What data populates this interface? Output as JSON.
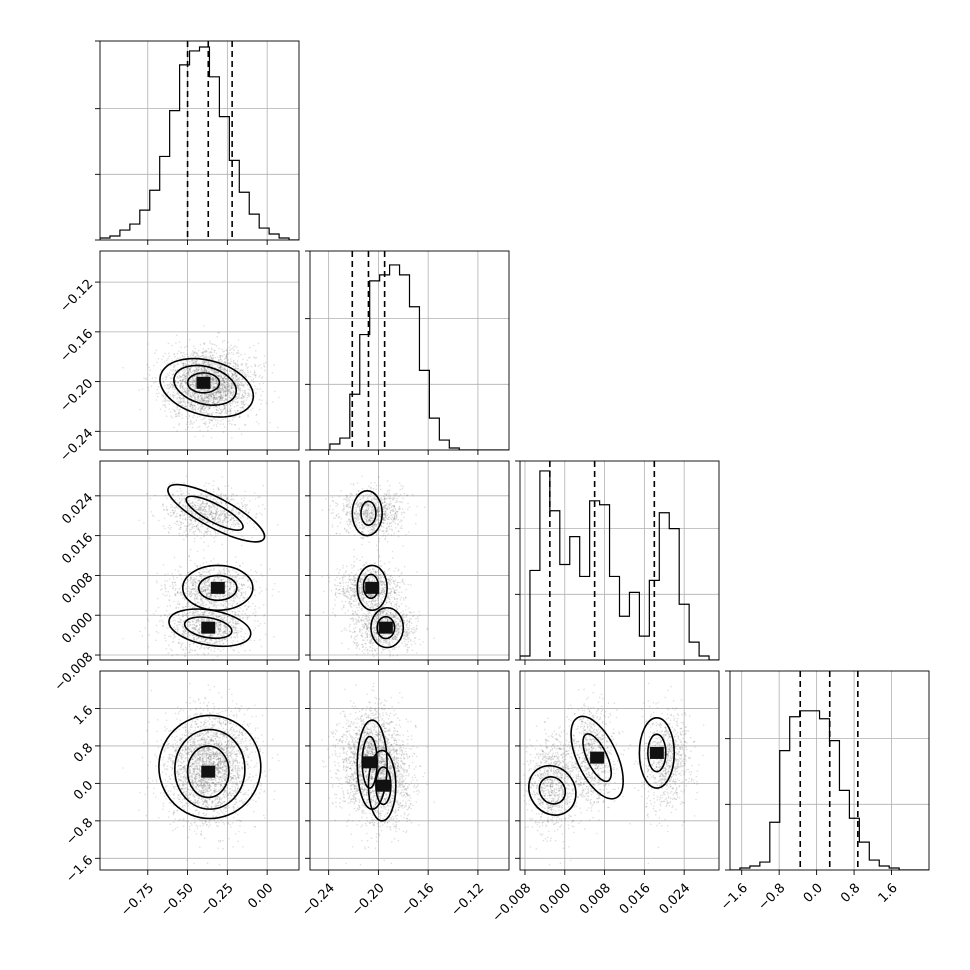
{
  "chart_data": {
    "type": "corner",
    "parameters": [
      {
        "key": "p0",
        "range": [
          -1.05,
          0.2
        ],
        "ticks": [
          -0.75,
          -0.5,
          -0.25,
          0.0
        ],
        "tick_labels": [
          "−0.75",
          "−0.50",
          "−0.25",
          "0.00"
        ],
        "quantiles": [
          -0.5,
          -0.37,
          -0.22
        ],
        "hist": [
          0.01,
          0.02,
          0.05,
          0.08,
          0.15,
          0.25,
          0.42,
          0.65,
          0.88,
          0.95,
          0.97,
          0.82,
          0.62,
          0.4,
          0.24,
          0.13,
          0.06,
          0.03,
          0.01,
          0.0
        ]
      },
      {
        "key": "p1",
        "range": [
          -0.255,
          -0.095
        ],
        "ticks": [
          -0.24,
          -0.2,
          -0.16,
          -0.12
        ],
        "tick_labels": [
          "−0.24",
          "−0.20",
          "−0.16",
          "−0.12"
        ],
        "quantiles": [
          -0.221,
          -0.208,
          -0.195
        ],
        "hist": [
          0.0,
          0.0,
          0.03,
          0.06,
          0.28,
          0.58,
          0.85,
          0.88,
          0.93,
          0.88,
          0.72,
          0.4,
          0.16,
          0.05,
          0.01,
          0.0,
          0.0,
          0.0,
          0.0,
          0.0
        ]
      },
      {
        "key": "p2",
        "range": [
          -0.009,
          0.031
        ],
        "ticks": [
          -0.008,
          0.0,
          0.008,
          0.016,
          0.024
        ],
        "tick_labels": [
          "−0.008",
          "0.000",
          "0.008",
          "0.016",
          "0.024"
        ],
        "quantiles": [
          -0.003,
          0.006,
          0.018
        ],
        "hist": [
          0.02,
          0.45,
          0.95,
          0.75,
          0.48,
          0.62,
          0.42,
          0.8,
          0.78,
          0.42,
          0.22,
          0.34,
          0.12,
          0.4,
          0.74,
          0.66,
          0.28,
          0.09,
          0.02,
          0.0
        ]
      },
      {
        "key": "p3",
        "range": [
          -1.85,
          2.4
        ],
        "ticks": [
          -1.6,
          -0.8,
          0.0,
          0.8,
          1.6
        ],
        "tick_labels": [
          "−1.6",
          "−0.8",
          "0.0",
          "0.8",
          "1.6"
        ],
        "quantiles": [
          -0.35,
          0.28,
          0.88
        ],
        "hist": [
          0.0,
          0.01,
          0.02,
          0.04,
          0.24,
          0.6,
          0.77,
          0.8,
          0.8,
          0.76,
          0.65,
          0.4,
          0.26,
          0.14,
          0.05,
          0.02,
          0.01,
          0.0,
          0.0,
          0.0
        ]
      }
    ],
    "modes": [
      {
        "m": [
          -0.38,
          -0.205,
          0.0205,
          0.5
        ],
        "w": 0.33
      },
      {
        "m": [
          -0.34,
          -0.208,
          0.0055,
          0.55
        ],
        "w": 0.33
      },
      {
        "m": [
          -0.38,
          -0.195,
          -0.0025,
          0.0
        ],
        "w": 0.34
      }
    ],
    "contours": {
      "1_0": [
        {
          "cx": -0.38,
          "cy": -0.205,
          "rx": 0.3,
          "ry": 0.022,
          "rot": 15
        },
        {
          "cx": -0.39,
          "cy": -0.203,
          "rx": 0.2,
          "ry": 0.015,
          "rot": 15
        },
        {
          "cx": -0.4,
          "cy": -0.201,
          "rx": 0.1,
          "ry": 0.008,
          "rot": 0
        }
      ],
      "2_0": [
        {
          "cx": -0.32,
          "cy": 0.0205,
          "rx": 0.34,
          "ry": 0.003,
          "rot": 28
        },
        {
          "cx": -0.33,
          "cy": 0.0205,
          "rx": 0.2,
          "ry": 0.0018,
          "rot": 28
        },
        {
          "cx": -0.31,
          "cy": 0.0055,
          "rx": 0.22,
          "ry": 0.0045,
          "rot": 0
        },
        {
          "cx": -0.31,
          "cy": 0.0055,
          "rx": 0.12,
          "ry": 0.0025,
          "rot": 0
        },
        {
          "cx": -0.36,
          "cy": -0.0025,
          "rx": 0.26,
          "ry": 0.0035,
          "rot": 10
        },
        {
          "cx": -0.37,
          "cy": -0.0025,
          "rx": 0.15,
          "ry": 0.002,
          "rot": 10
        }
      ],
      "2_1": [
        {
          "cx": -0.209,
          "cy": 0.0205,
          "rx": 0.012,
          "ry": 0.0045,
          "rot": 0
        },
        {
          "cx": -0.208,
          "cy": 0.0205,
          "rx": 0.006,
          "ry": 0.0024,
          "rot": 0
        },
        {
          "cx": -0.205,
          "cy": 0.0055,
          "rx": 0.012,
          "ry": 0.0045,
          "rot": 0
        },
        {
          "cx": -0.206,
          "cy": 0.0058,
          "rx": 0.006,
          "ry": 0.0024,
          "rot": 0
        },
        {
          "cx": -0.193,
          "cy": -0.0025,
          "rx": 0.013,
          "ry": 0.004,
          "rot": 0
        },
        {
          "cx": -0.194,
          "cy": -0.0025,
          "rx": 0.007,
          "ry": 0.0022,
          "rot": 0
        }
      ],
      "3_0": [
        {
          "cx": -0.36,
          "cy": 0.35,
          "rx": 0.32,
          "ry": 1.1,
          "rot": 0
        },
        {
          "cx": -0.36,
          "cy": 0.3,
          "rx": 0.22,
          "ry": 0.85,
          "rot": 0
        },
        {
          "cx": -0.37,
          "cy": 0.25,
          "rx": 0.13,
          "ry": 0.55,
          "rot": 0
        }
      ],
      "3_1": [
        {
          "cx": -0.205,
          "cy": 0.4,
          "rx": 0.012,
          "ry": 0.95,
          "rot": 0
        },
        {
          "cx": -0.197,
          "cy": -0.05,
          "rx": 0.011,
          "ry": 0.75,
          "rot": 0
        },
        {
          "cx": -0.207,
          "cy": 0.45,
          "rx": 0.006,
          "ry": 0.55,
          "rot": 0
        },
        {
          "cx": -0.196,
          "cy": -0.05,
          "rx": 0.006,
          "ry": 0.4,
          "rot": 0
        }
      ],
      "3_2": [
        {
          "cx": -0.0025,
          "cy": -0.15,
          "rx": 0.0045,
          "ry": 0.55,
          "rot": -35
        },
        {
          "cx": -0.0025,
          "cy": -0.15,
          "rx": 0.0025,
          "ry": 0.3,
          "rot": -35
        },
        {
          "cx": 0.0065,
          "cy": 0.55,
          "rx": 0.004,
          "ry": 0.95,
          "rot": -25
        },
        {
          "cx": 0.0065,
          "cy": 0.55,
          "rx": 0.002,
          "ry": 0.55,
          "rot": -25
        },
        {
          "cx": 0.0185,
          "cy": 0.65,
          "rx": 0.0035,
          "ry": 0.75,
          "rot": 0
        },
        {
          "cx": 0.0185,
          "cy": 0.65,
          "rx": 0.0018,
          "ry": 0.4,
          "rot": 0
        }
      ]
    },
    "grid": true,
    "legend": "none"
  }
}
